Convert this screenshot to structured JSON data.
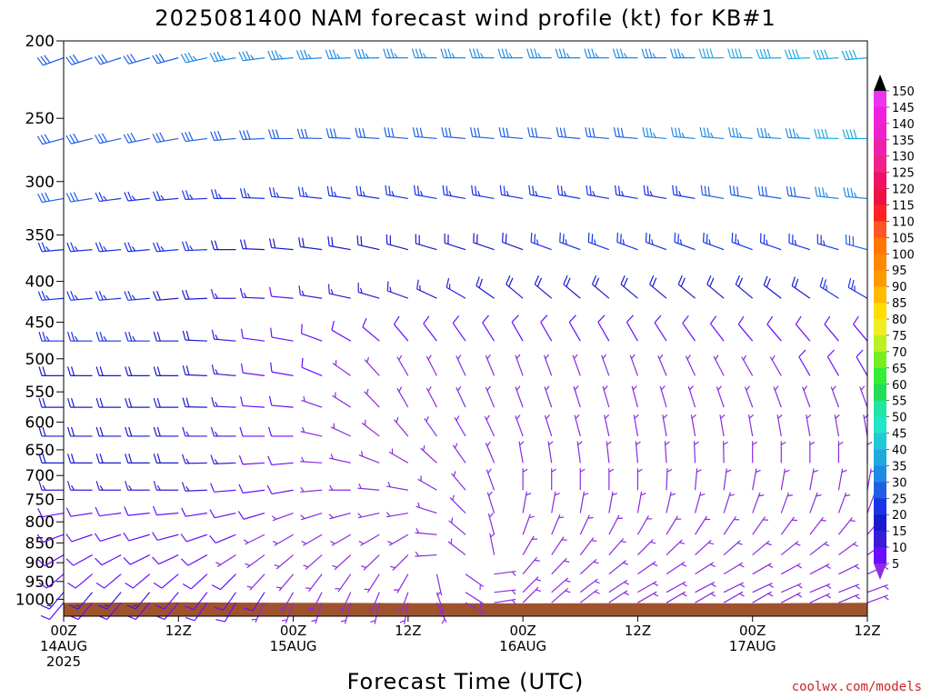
{
  "chart_data": {
    "type": "wind-barb-profile",
    "title": "2025081400 NAM forecast wind profile (kt) for KB#1",
    "xlabel": "Forecast Time (UTC)",
    "ylabel": "",
    "credit": "coolwx.com/models",
    "y_scale": "log-pressure (inverted)",
    "ylim": [
      1050,
      200
    ],
    "y_ticks": [
      "200",
      "250",
      "300",
      "350",
      "400",
      "450",
      "500",
      "550",
      "600",
      "650",
      "700",
      "750",
      "800",
      "850",
      "900",
      "950",
      "1000"
    ],
    "x_range_hours": [
      0,
      84
    ],
    "x_ticks": [
      {
        "line1": "00Z",
        "line2": "14AUG",
        "line3": "2025"
      },
      {
        "line1": "12Z",
        "line2": "",
        "line3": ""
      },
      {
        "line1": "00Z",
        "line2": "15AUG",
        "line3": ""
      },
      {
        "line1": "12Z",
        "line2": "",
        "line3": ""
      },
      {
        "line1": "00Z",
        "line2": "16AUG",
        "line3": ""
      },
      {
        "line1": "12Z",
        "line2": "",
        "line3": ""
      },
      {
        "line1": "00Z",
        "line2": "17AUG",
        "line3": ""
      },
      {
        "line1": "12Z",
        "line2": "",
        "line3": ""
      }
    ],
    "x_tick_hours": [
      0,
      12,
      24,
      36,
      48,
      60,
      72,
      84
    ],
    "barb_hours_step": 3,
    "surface_pressure_hpa": [
      1010,
      1009,
      1010,
      1011,
      1012,
      1011,
      1012,
      1010
    ],
    "colorbar": {
      "units": "kt",
      "levels": [
        5,
        10,
        15,
        20,
        25,
        30,
        35,
        40,
        45,
        50,
        55,
        60,
        65,
        70,
        75,
        80,
        85,
        90,
        95,
        100,
        105,
        110,
        115,
        120,
        125,
        130,
        135,
        140,
        145,
        150
      ],
      "colors": [
        "#8a2be2",
        "#6a0dff",
        "#3a1bd8",
        "#1a1acc",
        "#1a33e6",
        "#1f5fe6",
        "#1f8ae6",
        "#1faadf",
        "#22c8d6",
        "#22e6c8",
        "#1fe6a0",
        "#22dd55",
        "#33ee33",
        "#77ee22",
        "#bbf022",
        "#eeee22",
        "#ffdd00",
        "#ffbb00",
        "#ff9900",
        "#ff8800",
        "#ff7700",
        "#ff5522",
        "#ff2222",
        "#ee1144",
        "#ee1166",
        "#ee2288",
        "#ee22aa",
        "#ee22cc",
        "#ee22dd",
        "#ee33ee"
      ]
    },
    "profile": {
      "levels_hpa": [
        210,
        265,
        315,
        365,
        420,
        475,
        525,
        575,
        625,
        675,
        730,
        780,
        830,
        880,
        930,
        980,
        1010
      ],
      "speed_kt": [
        [
          30,
          28,
          28,
          26,
          25,
          24,
          22,
          22,
          20,
          18,
          15,
          12,
          10,
          10,
          12,
          14,
          10
        ],
        [
          32,
          28,
          26,
          24,
          22,
          22,
          22,
          22,
          20,
          18,
          15,
          12,
          10,
          8,
          10,
          12,
          10
        ],
        [
          34,
          30,
          24,
          18,
          12,
          8,
          8,
          8,
          8,
          8,
          8,
          7,
          6,
          6,
          6,
          6,
          5
        ],
        [
          34,
          30,
          26,
          22,
          16,
          8,
          6,
          5,
          5,
          5,
          5,
          5,
          5,
          5,
          6,
          6,
          5
        ],
        [
          36,
          30,
          26,
          22,
          18,
          10,
          6,
          5,
          5,
          5,
          5,
          5,
          5,
          5,
          5,
          6,
          5
        ],
        [
          36,
          32,
          26,
          24,
          20,
          10,
          7,
          5,
          5,
          5,
          5,
          5,
          5,
          5,
          5,
          5,
          5
        ],
        [
          38,
          34,
          28,
          24,
          20,
          10,
          7,
          5,
          5,
          5,
          5,
          5,
          5,
          5,
          5,
          5,
          5
        ],
        [
          42,
          40,
          34,
          28,
          24,
          10,
          8,
          6,
          6,
          6,
          5,
          5,
          5,
          5,
          5,
          5,
          5
        ]
      ],
      "direction_deg": [
        [
          250,
          255,
          260,
          265,
          265,
          270,
          270,
          270,
          270,
          270,
          270,
          260,
          250,
          240,
          230,
          220,
          220
        ],
        [
          255,
          260,
          265,
          265,
          265,
          270,
          270,
          270,
          270,
          270,
          270,
          265,
          255,
          245,
          230,
          220,
          220
        ],
        [
          265,
          270,
          275,
          275,
          275,
          280,
          280,
          275,
          270,
          265,
          260,
          250,
          240,
          230,
          220,
          210,
          200
        ],
        [
          270,
          275,
          280,
          285,
          290,
          320,
          330,
          330,
          320,
          300,
          280,
          260,
          240,
          225,
          210,
          200,
          190
        ],
        [
          270,
          275,
          280,
          290,
          310,
          330,
          340,
          340,
          340,
          350,
          360,
          10,
          20,
          30,
          40,
          45,
          45
        ],
        [
          270,
          275,
          280,
          290,
          310,
          330,
          340,
          345,
          350,
          355,
          360,
          10,
          30,
          45,
          55,
          60,
          60
        ],
        [
          270,
          275,
          280,
          290,
          310,
          320,
          330,
          340,
          350,
          360,
          10,
          20,
          35,
          50,
          60,
          65,
          60
        ],
        [
          265,
          270,
          275,
          285,
          300,
          320,
          330,
          340,
          350,
          360,
          10,
          20,
          40,
          55,
          65,
          70,
          70
        ]
      ],
      "keyframe_hours": [
        0,
        12,
        24,
        36,
        48,
        60,
        72,
        84
      ]
    }
  }
}
